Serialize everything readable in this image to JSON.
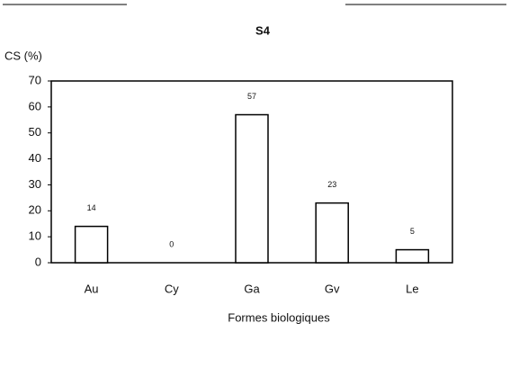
{
  "chart_data": {
    "type": "bar",
    "title": "S4",
    "y_label": "CS (%)",
    "x_label": "Formes biologiques",
    "categories": [
      "Au",
      "Cy",
      "Ga",
      "Gv",
      "Le"
    ],
    "values": [
      14,
      0,
      57,
      23,
      5
    ],
    "color": "#ffffff",
    "ylim": [
      0,
      70
    ],
    "yticks": [
      0,
      10,
      20,
      30,
      40,
      50,
      60,
      70
    ],
    "grid": false
  }
}
